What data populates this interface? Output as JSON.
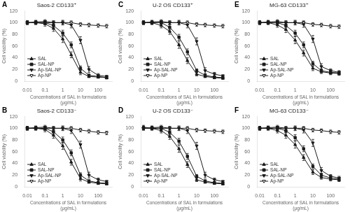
{
  "chart_data": [
    {
      "type": "line",
      "title": "Saos-2 CD133⁺",
      "annotations": [
        "A"
      ],
      "x": [
        0.01,
        0.03,
        0.1,
        0.3,
        1,
        3,
        10,
        30,
        100,
        300
      ],
      "xlabel": "Concentrations of SAL in formulations\n(μg/mL)",
      "ylabel": "Cell viability (%)",
      "xlim": [
        0.007,
        600
      ],
      "xticks": [
        0.01,
        0.1,
        1,
        10,
        100
      ],
      "ylim": [
        0,
        120
      ],
      "yticks": [
        0,
        20,
        40,
        60,
        80,
        100,
        120
      ],
      "log": "x",
      "grid": false,
      "legend": "lower left",
      "series": [
        {
          "name": "SAL",
          "color": "#1a1a1a",
          "marker": "triangle-up",
          "values": [
            100,
            100,
            98,
            90,
            72,
            45,
            15,
            8,
            7,
            6
          ],
          "errors": [
            3,
            3,
            4,
            5,
            6,
            5,
            4,
            2,
            2,
            2
          ]
        },
        {
          "name": "SAL-NP",
          "color": "#1a1a1a",
          "marker": "square",
          "values": [
            100,
            100,
            100,
            95,
            82,
            62,
            22,
            10,
            8,
            6
          ],
          "errors": [
            3,
            3,
            3,
            4,
            5,
            5,
            4,
            2,
            2,
            2
          ]
        },
        {
          "name": "Ap-SAL-NP",
          "color": "#1a1a1a",
          "marker": "triangle-down",
          "values": [
            100,
            101,
            102,
            100,
            100,
            96,
            70,
            20,
            10,
            8
          ],
          "errors": [
            3,
            3,
            3,
            3,
            4,
            5,
            6,
            5,
            3,
            2
          ]
        },
        {
          "name": "Ap-NP",
          "color": "#1a1a1a",
          "marker": "triangle-down-open",
          "values": [
            100,
            100,
            100,
            100,
            100,
            100,
            97,
            96,
            95,
            94
          ],
          "errors": [
            3,
            3,
            3,
            3,
            3,
            3,
            3,
            3,
            3,
            3
          ]
        }
      ]
    },
    {
      "type": "line",
      "title": "U-2 OS CD133⁺",
      "annotations": [
        "C"
      ],
      "x": [
        0.01,
        0.03,
        0.1,
        0.3,
        1,
        3,
        10,
        30,
        100,
        300
      ],
      "xlabel": "Concentrations of SAL in formulations\n(μg/mL)",
      "ylabel": "Cell viability (%)",
      "xlim": [
        0.007,
        600
      ],
      "xticks": [
        0.01,
        0.1,
        1,
        10,
        100
      ],
      "ylim": [
        0,
        120
      ],
      "yticks": [
        0,
        20,
        40,
        60,
        80,
        100,
        120
      ],
      "log": "x",
      "grid": false,
      "legend": "lower left",
      "series": [
        {
          "name": "SAL",
          "color": "#1a1a1a",
          "marker": "triangle-up",
          "values": [
            100,
            100,
            95,
            85,
            62,
            35,
            12,
            8,
            6,
            5
          ],
          "errors": [
            3,
            3,
            4,
            5,
            6,
            5,
            3,
            2,
            2,
            2
          ]
        },
        {
          "name": "SAL-NP",
          "color": "#1a1a1a",
          "marker": "square",
          "values": [
            100,
            100,
            100,
            92,
            75,
            50,
            18,
            10,
            7,
            6
          ],
          "errors": [
            3,
            3,
            3,
            4,
            5,
            5,
            3,
            2,
            2,
            2
          ]
        },
        {
          "name": "Ap-SAL-NP",
          "color": "#1a1a1a",
          "marker": "triangle-down",
          "values": [
            100,
            101,
            102,
            100,
            100,
            96,
            68,
            18,
            12,
            9
          ],
          "errors": [
            3,
            3,
            3,
            3,
            4,
            5,
            6,
            5,
            3,
            2
          ]
        },
        {
          "name": "Ap-NP",
          "color": "#1a1a1a",
          "marker": "triangle-down-open",
          "values": [
            100,
            100,
            100,
            100,
            100,
            100,
            97,
            96,
            95,
            94
          ],
          "errors": [
            3,
            3,
            3,
            3,
            3,
            3,
            3,
            3,
            3,
            3
          ]
        }
      ]
    },
    {
      "type": "line",
      "title": "MG-63 CD133⁺",
      "annotations": [
        "E"
      ],
      "x": [
        0.01,
        0.03,
        0.1,
        0.3,
        1,
        3,
        10,
        30,
        100,
        300
      ],
      "xlabel": "Concentrations of SAL in formulations\n(μg/mL)",
      "ylabel": "Cell viability (%)",
      "xlim": [
        0.007,
        600
      ],
      "xticks": [
        0.01,
        0.1,
        1,
        10,
        100
      ],
      "ylim": [
        0,
        120
      ],
      "yticks": [
        0,
        20,
        40,
        60,
        80,
        100,
        120
      ],
      "log": "x",
      "grid": false,
      "legend": "lower left",
      "series": [
        {
          "name": "SAL",
          "color": "#1a1a1a",
          "marker": "triangle-up",
          "values": [
            100,
            100,
            96,
            88,
            70,
            48,
            22,
            16,
            14,
            13
          ],
          "errors": [
            3,
            3,
            4,
            5,
            6,
            5,
            4,
            3,
            3,
            3
          ]
        },
        {
          "name": "SAL-NP",
          "color": "#1a1a1a",
          "marker": "square",
          "values": [
            100,
            100,
            100,
            95,
            82,
            62,
            30,
            18,
            15,
            14
          ],
          "errors": [
            3,
            3,
            3,
            4,
            5,
            5,
            4,
            3,
            3,
            3
          ]
        },
        {
          "name": "Ap-SAL-NP",
          "color": "#1a1a1a",
          "marker": "triangle-down",
          "values": [
            100,
            101,
            102,
            100,
            100,
            97,
            72,
            25,
            18,
            15
          ],
          "errors": [
            3,
            3,
            3,
            3,
            4,
            5,
            6,
            5,
            3,
            3
          ]
        },
        {
          "name": "Ap-NP",
          "color": "#1a1a1a",
          "marker": "triangle-down-open",
          "values": [
            100,
            100,
            100,
            100,
            100,
            100,
            97,
            96,
            94,
            93
          ],
          "errors": [
            3,
            3,
            3,
            3,
            3,
            3,
            3,
            3,
            3,
            3
          ]
        }
      ]
    },
    {
      "type": "line",
      "title": "Saos-2 CD133⁻",
      "annotations": [
        "B"
      ],
      "x": [
        0.01,
        0.03,
        0.1,
        0.3,
        1,
        3,
        10,
        30,
        100,
        300
      ],
      "xlabel": "Concentrations of SAL in formulations\n(μg/mL)",
      "ylabel": "Cell viability (%)",
      "xlim": [
        0.007,
        600
      ],
      "xticks": [
        0.01,
        0.1,
        1,
        10,
        100
      ],
      "ylim": [
        0,
        120
      ],
      "yticks": [
        0,
        20,
        40,
        60,
        80,
        100,
        120
      ],
      "log": "x",
      "grid": false,
      "legend": "lower left",
      "series": [
        {
          "name": "SAL",
          "color": "#1a1a1a",
          "marker": "triangle-up",
          "values": [
            100,
            100,
            98,
            88,
            70,
            42,
            14,
            8,
            6,
            5
          ],
          "errors": [
            3,
            3,
            4,
            5,
            6,
            5,
            4,
            2,
            2,
            2
          ]
        },
        {
          "name": "SAL-NP",
          "color": "#1a1a1a",
          "marker": "square",
          "values": [
            100,
            100,
            100,
            94,
            80,
            58,
            20,
            10,
            7,
            6
          ],
          "errors": [
            3,
            3,
            3,
            4,
            5,
            5,
            4,
            2,
            2,
            2
          ]
        },
        {
          "name": "Ap-SAL-NP",
          "color": "#1a1a1a",
          "marker": "triangle-down",
          "values": [
            100,
            101,
            102,
            100,
            100,
            96,
            72,
            20,
            12,
            9
          ],
          "errors": [
            3,
            3,
            3,
            3,
            4,
            5,
            6,
            5,
            3,
            2
          ]
        },
        {
          "name": "Ap-NP",
          "color": "#1a1a1a",
          "marker": "triangle-down-open",
          "values": [
            100,
            100,
            100,
            100,
            100,
            100,
            97,
            95,
            93,
            92
          ],
          "errors": [
            3,
            3,
            3,
            3,
            3,
            3,
            3,
            3,
            3,
            3
          ]
        }
      ]
    },
    {
      "type": "line",
      "title": "U-2 OS CD133⁻",
      "annotations": [
        "D"
      ],
      "x": [
        0.01,
        0.03,
        0.1,
        0.3,
        1,
        3,
        10,
        30,
        100,
        300
      ],
      "xlabel": "Concentrations of SAL in formulations\n(μg/mL)",
      "ylabel": "Cell viability (%)",
      "xlim": [
        0.007,
        600
      ],
      "xticks": [
        0.01,
        0.1,
        1,
        10,
        100
      ],
      "ylim": [
        0,
        120
      ],
      "yticks": [
        0,
        20,
        40,
        60,
        80,
        100,
        120
      ],
      "log": "x",
      "grid": false,
      "legend": "lower left",
      "series": [
        {
          "name": "SAL",
          "color": "#1a1a1a",
          "marker": "triangle-up",
          "values": [
            102,
            100,
            96,
            86,
            65,
            38,
            12,
            8,
            6,
            5
          ],
          "errors": [
            3,
            3,
            4,
            5,
            6,
            5,
            3,
            2,
            2,
            2
          ]
        },
        {
          "name": "SAL-NP",
          "color": "#1a1a1a",
          "marker": "square",
          "values": [
            100,
            100,
            100,
            93,
            78,
            52,
            18,
            10,
            7,
            6
          ],
          "errors": [
            3,
            3,
            3,
            4,
            5,
            5,
            3,
            2,
            2,
            2
          ]
        },
        {
          "name": "Ap-SAL-NP",
          "color": "#1a1a1a",
          "marker": "triangle-down",
          "values": [
            100,
            101,
            102,
            100,
            100,
            96,
            70,
            20,
            12,
            9
          ],
          "errors": [
            3,
            3,
            3,
            3,
            4,
            5,
            6,
            5,
            3,
            2
          ]
        },
        {
          "name": "Ap-NP",
          "color": "#1a1a1a",
          "marker": "triangle-down-open",
          "values": [
            100,
            100,
            100,
            100,
            100,
            100,
            97,
            96,
            95,
            94
          ],
          "errors": [
            3,
            3,
            3,
            3,
            3,
            3,
            3,
            3,
            3,
            3
          ]
        }
      ]
    },
    {
      "type": "line",
      "title": "MG-63 CD133⁻",
      "annotations": [
        "F"
      ],
      "x": [
        0.01,
        0.03,
        0.1,
        0.3,
        1,
        3,
        10,
        30,
        100,
        300
      ],
      "xlabel": "Concentrations of SAL in formulations\n(μg/mL)",
      "ylabel": "Cell viability (%)",
      "xlim": [
        0.007,
        600
      ],
      "xticks": [
        0.01,
        0.1,
        1,
        10,
        100
      ],
      "ylim": [
        0,
        120
      ],
      "yticks": [
        0,
        20,
        40,
        60,
        80,
        100,
        120
      ],
      "log": "x",
      "grid": false,
      "legend": "lower left",
      "series": [
        {
          "name": "SAL",
          "color": "#1a1a1a",
          "marker": "triangle-up",
          "values": [
            100,
            100,
            96,
            88,
            72,
            50,
            25,
            16,
            13,
            12
          ],
          "errors": [
            3,
            3,
            4,
            5,
            6,
            5,
            4,
            3,
            3,
            3
          ]
        },
        {
          "name": "SAL-NP",
          "color": "#1a1a1a",
          "marker": "square",
          "values": [
            100,
            100,
            100,
            96,
            84,
            65,
            35,
            20,
            15,
            13
          ],
          "errors": [
            3,
            3,
            3,
            4,
            5,
            5,
            4,
            3,
            3,
            3
          ]
        },
        {
          "name": "Ap-SAL-NP",
          "color": "#1a1a1a",
          "marker": "triangle-down",
          "values": [
            100,
            101,
            102,
            100,
            100,
            97,
            75,
            28,
            18,
            15
          ],
          "errors": [
            3,
            3,
            3,
            3,
            4,
            5,
            6,
            5,
            3,
            3
          ]
        },
        {
          "name": "Ap-NP",
          "color": "#1a1a1a",
          "marker": "triangle-down-open",
          "values": [
            100,
            100,
            100,
            100,
            100,
            100,
            97,
            96,
            94,
            93
          ],
          "errors": [
            3,
            3,
            3,
            3,
            3,
            3,
            3,
            3,
            3,
            3
          ]
        }
      ]
    }
  ]
}
